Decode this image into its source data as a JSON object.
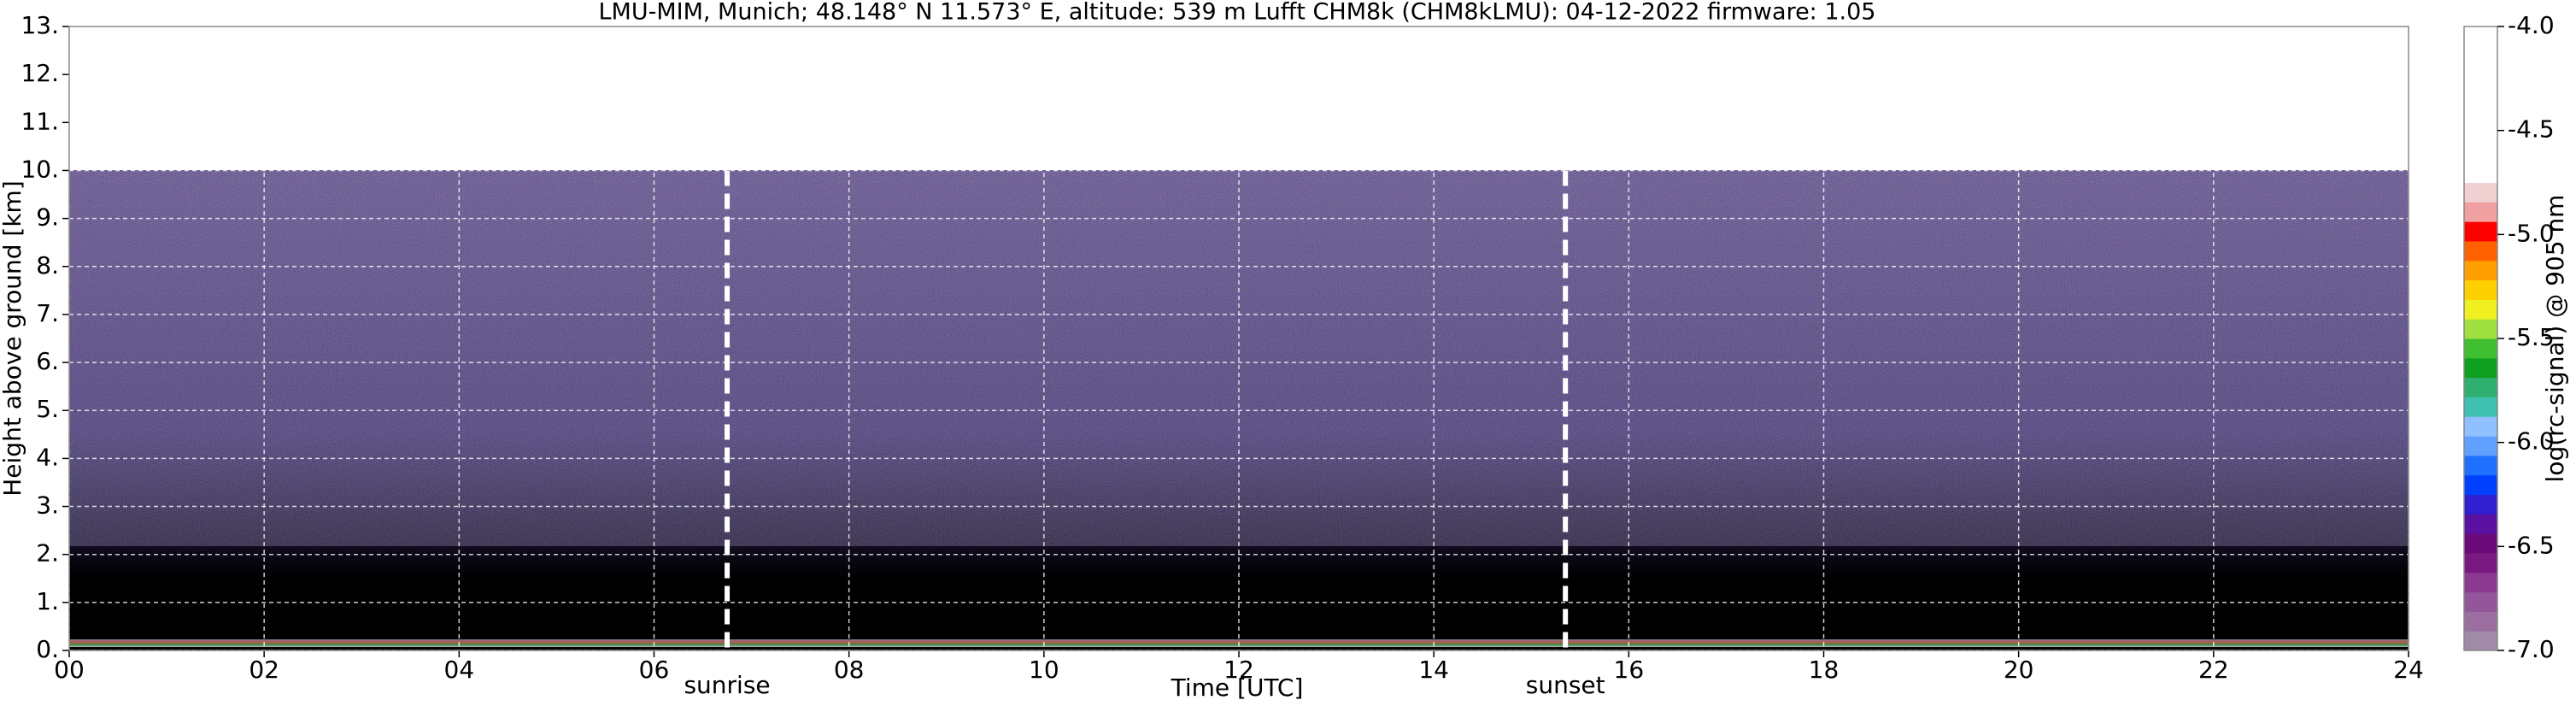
{
  "chart_data": {
    "type": "heatmap",
    "title": "LMU-MIM, Munich; 48.148° N 11.573° E, altitude: 539 m    Lufft CHM8k (CHM8kLMU): 04-12-2022    firmware: 1.05",
    "xlabel": "Time [UTC]",
    "ylabel": "Height above ground [km]",
    "xlim": [
      0,
      24
    ],
    "ylim": [
      0,
      13
    ],
    "xticks": [
      {
        "value": 0,
        "label": "00"
      },
      {
        "value": 2,
        "label": "02"
      },
      {
        "value": 4,
        "label": "04"
      },
      {
        "value": 6,
        "label": "06"
      },
      {
        "value": 8,
        "label": "08"
      },
      10,
      12,
      14,
      16,
      18,
      20,
      22,
      24
    ],
    "yticks": [
      {
        "value": 0,
        "label": "0."
      },
      {
        "value": 1,
        "label": "1."
      },
      {
        "value": 2,
        "label": "2."
      },
      {
        "value": 3,
        "label": "3."
      },
      {
        "value": 4,
        "label": "4."
      },
      {
        "value": 5,
        "label": "5."
      },
      {
        "value": 6,
        "label": "6."
      },
      {
        "value": 7,
        "label": "7."
      },
      {
        "value": 8,
        "label": "8."
      },
      {
        "value": 9,
        "label": "9."
      },
      {
        "value": 10,
        "label": "10."
      },
      {
        "value": 11,
        "label": "11."
      },
      {
        "value": 12,
        "label": "12."
      },
      {
        "value": 13,
        "label": "13."
      }
    ],
    "grid": true,
    "annotations": [
      {
        "x": 6.75,
        "label": "sunrise"
      },
      {
        "x": 15.35,
        "label": "sunset"
      }
    ],
    "colorbar": {
      "label": "log(rc-signal) @ 905 nm",
      "clim": [
        -7.0,
        -4.0
      ],
      "ticks": [
        {
          "value": -4.0,
          "label": "-4.0"
        },
        {
          "value": -4.5,
          "label": "-4.5"
        },
        {
          "value": -5.0,
          "label": "-5.0"
        },
        {
          "value": -5.5,
          "label": "-5.5"
        },
        {
          "value": -6.0,
          "label": "-6.0"
        },
        {
          "value": -6.5,
          "label": "-6.5"
        },
        {
          "value": -7.0,
          "label": "-7.0"
        }
      ],
      "colors": [
        "#a08aa8",
        "#9a6fa0",
        "#94569a",
        "#8a3a90",
        "#7a1a80",
        "#6a0a78",
        "#5a10a0",
        "#3020d0",
        "#0040ff",
        "#2070ff",
        "#60a0ff",
        "#90c0ff",
        "#40c0b0",
        "#30b070",
        "#10a020",
        "#40c030",
        "#a0e040",
        "#f0f020",
        "#ffd000",
        "#ffa000",
        "#ff6000",
        "#ff0000",
        "#f0a0a0",
        "#f0d0d0",
        "#ffffff",
        "#ffffff",
        "#ffffff",
        "#ffffff",
        "#ffffff",
        "#ffffff",
        "#ffffff",
        "#ffffff"
      ]
    }
  }
}
